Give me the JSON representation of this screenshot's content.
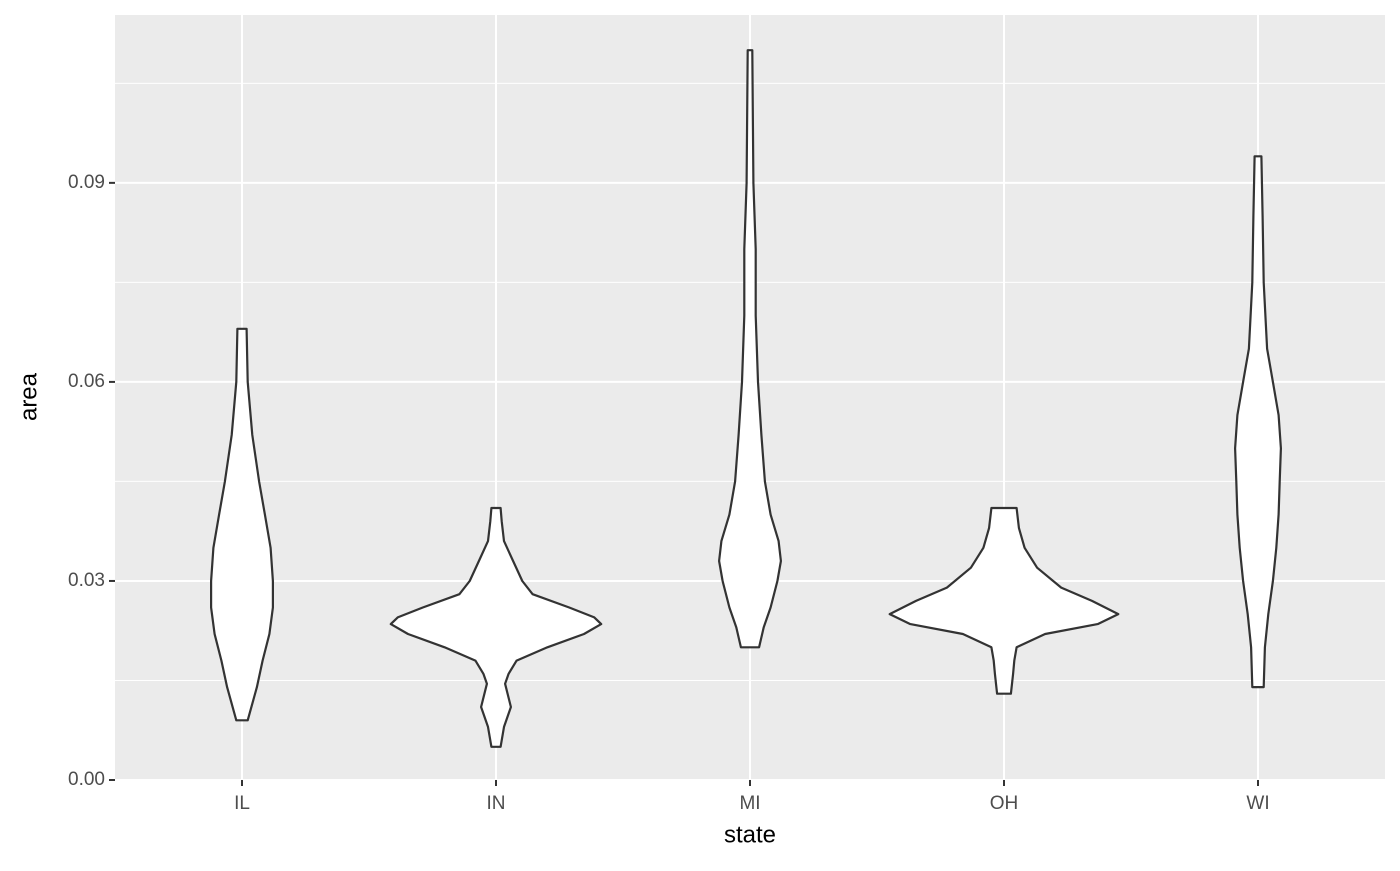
{
  "chart_data": {
    "type": "violin",
    "x_label": "state",
    "y_label": "area",
    "categories": [
      "IL",
      "IN",
      "MI",
      "OH",
      "WI"
    ],
    "violins": [
      {
        "y": [
          0.068,
          0.06,
          0.052,
          0.045,
          0.04,
          0.035,
          0.03,
          0.026,
          0.022,
          0.018,
          0.014,
          0.009
        ],
        "width": [
          0.04,
          0.05,
          0.09,
          0.15,
          0.2,
          0.25,
          0.27,
          0.27,
          0.24,
          0.18,
          0.13,
          0.05
        ]
      },
      {
        "y": [
          0.041,
          0.039,
          0.036,
          0.033,
          0.03,
          0.028,
          0.026,
          0.0245,
          0.0235,
          0.022,
          0.02,
          0.018,
          0.016,
          0.0145,
          0.011,
          0.008,
          0.005
        ],
        "width": [
          0.04,
          0.05,
          0.07,
          0.15,
          0.23,
          0.32,
          0.64,
          0.86,
          0.92,
          0.77,
          0.45,
          0.18,
          0.11,
          0.08,
          0.13,
          0.07,
          0.04
        ]
      },
      {
        "y": [
          0.11,
          0.09,
          0.08,
          0.07,
          0.06,
          0.052,
          0.045,
          0.04,
          0.036,
          0.033,
          0.03,
          0.026,
          0.023,
          0.02
        ],
        "width": [
          0.02,
          0.03,
          0.05,
          0.05,
          0.07,
          0.1,
          0.13,
          0.18,
          0.25,
          0.27,
          0.24,
          0.18,
          0.12,
          0.08
        ]
      },
      {
        "y": [
          0.041,
          0.038,
          0.035,
          0.032,
          0.029,
          0.027,
          0.025,
          0.0235,
          0.022,
          0.02,
          0.018,
          0.016,
          0.013
        ],
        "width": [
          0.11,
          0.13,
          0.18,
          0.29,
          0.5,
          0.77,
          1.0,
          0.82,
          0.36,
          0.11,
          0.09,
          0.08,
          0.06
        ]
      },
      {
        "y": [
          0.094,
          0.085,
          0.075,
          0.065,
          0.06,
          0.055,
          0.05,
          0.045,
          0.04,
          0.035,
          0.03,
          0.025,
          0.02,
          0.014
        ],
        "width": [
          0.03,
          0.04,
          0.05,
          0.08,
          0.13,
          0.18,
          0.2,
          0.19,
          0.18,
          0.16,
          0.13,
          0.09,
          0.06,
          0.05
        ]
      }
    ],
    "fill": "#ffffff",
    "outline": "#333333",
    "ylim": [
      0,
      0.1153
    ],
    "yticks": [
      {
        "value": 0,
        "label": "0.00"
      },
      0.03,
      0.06,
      0.09
    ],
    "minor_yticks": [
      0.015,
      0.045,
      0.075,
      0.105
    ],
    "grid": true
  }
}
